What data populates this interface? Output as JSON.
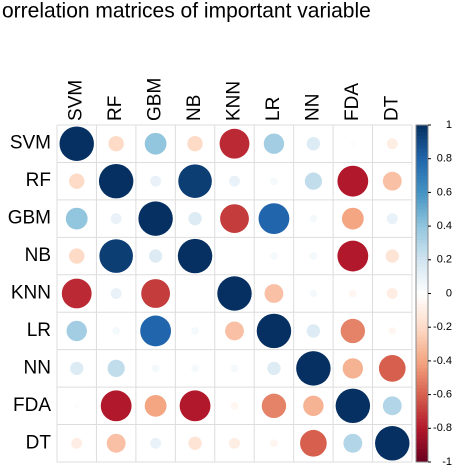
{
  "chart_data": {
    "type": "corrplot",
    "title": "orrelation matrices of important variable",
    "categories": [
      "SVM",
      "RF",
      "GBM",
      "NB",
      "KNN",
      "LR",
      "NN",
      "FDA",
      "DT"
    ],
    "values": [
      [
        1,
        -0.2,
        0.4,
        -0.2,
        -0.75,
        0.35,
        0.15,
        0.02,
        -0.1
      ],
      [
        -0.2,
        1,
        0.1,
        0.95,
        0.1,
        0.05,
        0.25,
        -0.8,
        -0.3
      ],
      [
        0.4,
        0.1,
        1,
        0.15,
        -0.7,
        0.8,
        0.05,
        -0.4,
        0.1
      ],
      [
        -0.2,
        0.95,
        0.15,
        1,
        0,
        0.05,
        0.05,
        -0.8,
        -0.15
      ],
      [
        -0.75,
        0.1,
        -0.7,
        0,
        1,
        -0.3,
        0.05,
        -0.05,
        -0.1
      ],
      [
        0.35,
        0.05,
        0.8,
        0.05,
        -0.3,
        1,
        0.15,
        -0.5,
        -0.05
      ],
      [
        0.15,
        0.25,
        0.05,
        0.05,
        0.05,
        0.15,
        1,
        -0.35,
        -0.6
      ],
      [
        0.02,
        -0.8,
        -0.4,
        -0.8,
        -0.05,
        -0.5,
        -0.35,
        1,
        0.3
      ],
      [
        -0.1,
        -0.3,
        0.1,
        -0.15,
        -0.1,
        -0.05,
        -0.6,
        0.3,
        1
      ]
    ],
    "clim": [
      -1,
      1
    ],
    "cticks": [
      -1,
      -0.8,
      -0.6,
      -0.4,
      -0.2,
      0,
      0.2,
      0.4,
      0.6,
      0.8,
      1
    ],
    "colorscale": [
      "#67001F",
      "#B2182B",
      "#D6604D",
      "#F4A582",
      "#FDDBC7",
      "#FFFFFF",
      "#D1E5F0",
      "#92C5DE",
      "#4393C3",
      "#2166AC",
      "#053061"
    ]
  }
}
